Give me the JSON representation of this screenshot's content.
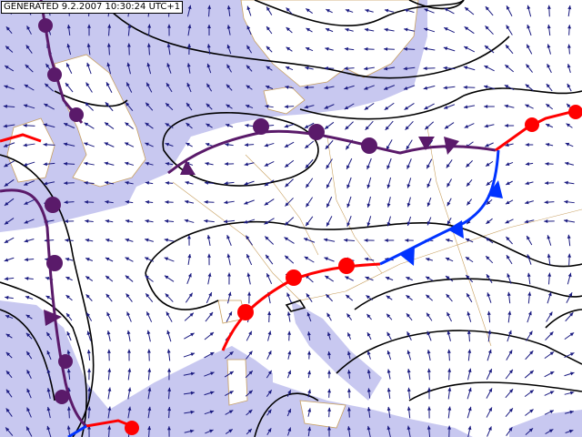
{
  "header": {
    "timestamp": "GENERATED 9.2.2007 10:30:24 UTC+1"
  }
}
